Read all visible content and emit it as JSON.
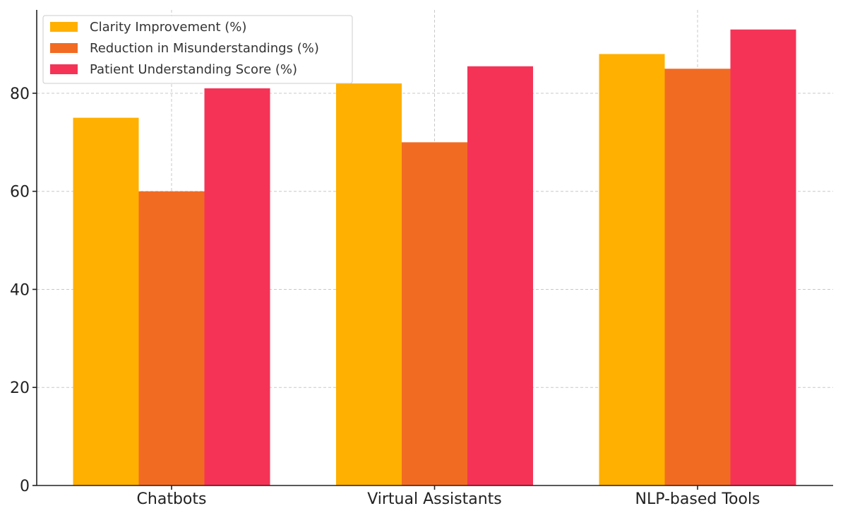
{
  "chart_data": {
    "type": "bar",
    "title": "",
    "xlabel": "",
    "ylabel": "",
    "categories": [
      "Chatbots",
      "Virtual Assistants",
      "NLP-based Tools"
    ],
    "series": [
      {
        "name": "Clarity Improvement (%)",
        "values": [
          75,
          82,
          88
        ],
        "color": "#FFB000"
      },
      {
        "name": "Reduction in Misunderstandings (%)",
        "values": [
          60,
          70,
          85
        ],
        "color": "#F26B23"
      },
      {
        "name": "Patient Understanding Score (%)",
        "values": [
          81,
          85.5,
          93
        ],
        "color": "#F53357"
      }
    ],
    "ylim": [
      0,
      97
    ],
    "yticks": [
      0,
      20,
      40,
      60,
      80
    ],
    "grid": true,
    "legend_position": "top-left"
  }
}
